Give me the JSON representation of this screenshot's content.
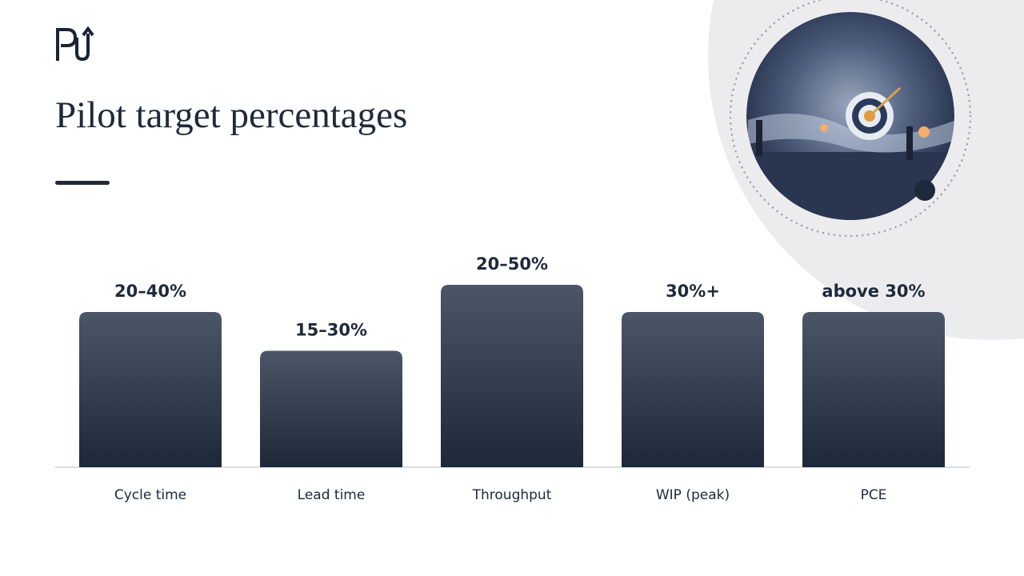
{
  "chart_data": {
    "type": "bar",
    "title": "Pilot target percentages",
    "categories": [
      "Cycle time",
      "Lead time",
      "Throughput",
      "WIP (peak)",
      "PCE"
    ],
    "values": [
      40,
      30,
      47,
      40,
      40
    ],
    "value_labels": [
      "20–40%",
      "15–30%",
      "20–50%",
      "30%+",
      "above 30%"
    ],
    "color": "#2f3a4c"
  }
}
